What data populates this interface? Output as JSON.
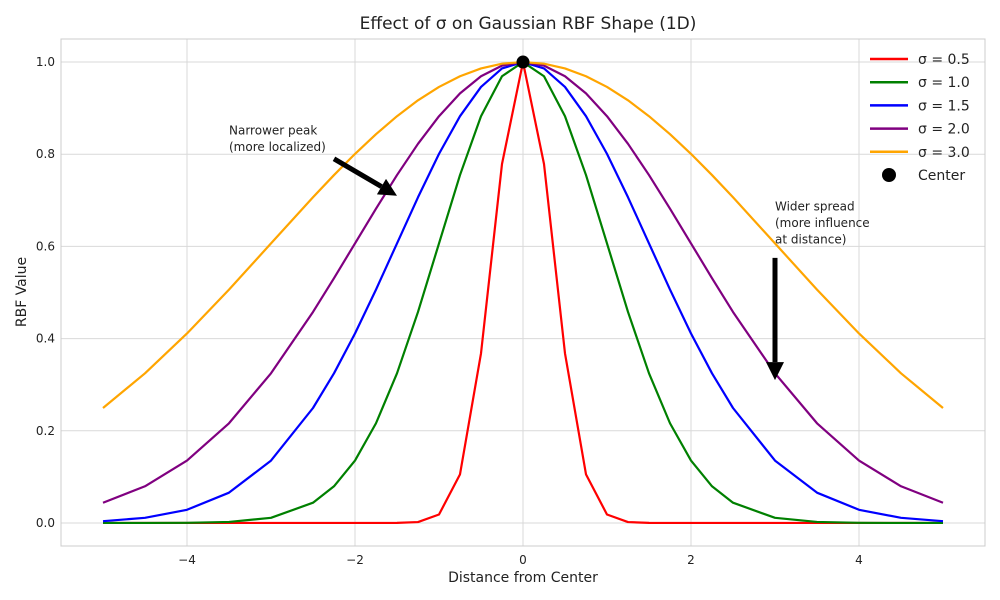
{
  "chart_data": {
    "type": "line",
    "title": "Effect of σ on Gaussian RBF Shape (1D)",
    "xlabel": "Distance from Center",
    "ylabel": "RBF Value",
    "xlim": [
      -5.5,
      5.5
    ],
    "ylim": [
      -0.05,
      1.05
    ],
    "xticks": [
      -4,
      -2,
      0,
      2,
      4
    ],
    "xtick_labels": [
      "−4",
      "−2",
      "0",
      "2",
      "4"
    ],
    "yticks": [
      0.0,
      0.2,
      0.4,
      0.6,
      0.8,
      1.0
    ],
    "ytick_labels": [
      "0.0",
      "0.2",
      "0.4",
      "0.6",
      "0.8",
      "1.0"
    ],
    "grid": true,
    "legend_position": "top-right",
    "x": [
      -5.0,
      -4.5,
      -4.0,
      -3.5,
      -3.0,
      -2.5,
      -2.25,
      -2.0,
      -1.75,
      -1.5,
      -1.25,
      -1.0,
      -0.75,
      -0.5,
      -0.25,
      0.0,
      0.25,
      0.5,
      0.75,
      1.0,
      1.25,
      1.5,
      1.75,
      2.0,
      2.25,
      2.5,
      3.0,
      3.5,
      4.0,
      4.5,
      5.0
    ],
    "series": [
      {
        "name": "σ = 0.5",
        "color": "#ff0000",
        "values": [
          0.0,
          0.0,
          0.0,
          0.0,
          0.0,
          0.0,
          0.0,
          0.0,
          0.0,
          0.0001,
          0.0019,
          0.0183,
          0.1054,
          0.3679,
          0.7788,
          1.0,
          0.7788,
          0.3679,
          0.1054,
          0.0183,
          0.0019,
          0.0001,
          0.0,
          0.0,
          0.0,
          0.0,
          0.0,
          0.0,
          0.0,
          0.0,
          0.0
        ]
      },
      {
        "name": "σ = 1.0",
        "color": "#008000",
        "values": [
          0.0,
          0.0,
          0.0003,
          0.0022,
          0.0111,
          0.0439,
          0.0796,
          0.1353,
          0.2163,
          0.3247,
          0.4578,
          0.6065,
          0.7548,
          0.8825,
          0.9692,
          1.0,
          0.9692,
          0.8825,
          0.7548,
          0.6065,
          0.4578,
          0.3247,
          0.2163,
          0.1353,
          0.0796,
          0.0439,
          0.0111,
          0.0022,
          0.0003,
          0.0,
          0.0
        ]
      },
      {
        "name": "σ = 1.5",
        "color": "#0000ff",
        "values": [
          0.0039,
          0.0111,
          0.0286,
          0.0657,
          0.1353,
          0.2494,
          0.3247,
          0.4111,
          0.5063,
          0.6065,
          0.7066,
          0.8007,
          0.8825,
          0.946,
          0.9862,
          1.0,
          0.9862,
          0.946,
          0.8825,
          0.8007,
          0.7066,
          0.6065,
          0.5063,
          0.4111,
          0.3247,
          0.2494,
          0.1353,
          0.0657,
          0.0286,
          0.0111,
          0.0039
        ]
      },
      {
        "name": "σ = 2.0",
        "color": "#800080",
        "values": [
          0.0439,
          0.0796,
          0.1353,
          0.2163,
          0.3247,
          0.4578,
          0.5311,
          0.6065,
          0.6819,
          0.7548,
          0.8226,
          0.8825,
          0.9321,
          0.9692,
          0.9922,
          1.0,
          0.9922,
          0.9692,
          0.9321,
          0.8825,
          0.8226,
          0.7548,
          0.6819,
          0.6065,
          0.5311,
          0.4578,
          0.3247,
          0.2163,
          0.1353,
          0.0796,
          0.0439
        ]
      },
      {
        "name": "σ = 3.0",
        "color": "#ffa500",
        "values": [
          0.2494,
          0.3247,
          0.4111,
          0.5063,
          0.6065,
          0.7066,
          0.7548,
          0.8007,
          0.8434,
          0.8825,
          0.917,
          0.946,
          0.9692,
          0.9862,
          0.9965,
          1.0,
          0.9965,
          0.9862,
          0.9692,
          0.946,
          0.917,
          0.8825,
          0.8434,
          0.8007,
          0.7548,
          0.7066,
          0.6065,
          0.5063,
          0.4111,
          0.3247,
          0.2494
        ]
      }
    ],
    "center_point": {
      "name": "Center",
      "x": 0,
      "y": 1.0,
      "color": "#000000"
    },
    "annotations": [
      {
        "lines": [
          "Narrower peak",
          "(more localized)"
        ],
        "text_xy": [
          -3.5,
          0.8
        ],
        "arrow_from": [
          -2.25,
          0.79
        ],
        "arrow_to": [
          -1.5,
          0.71
        ]
      },
      {
        "lines": [
          "Wider spread",
          "(more influence",
          "at distance)"
        ],
        "text_xy": [
          3.0,
          0.6
        ],
        "arrow_from": [
          3.0,
          0.575
        ],
        "arrow_to": [
          3.0,
          0.31
        ]
      }
    ]
  }
}
